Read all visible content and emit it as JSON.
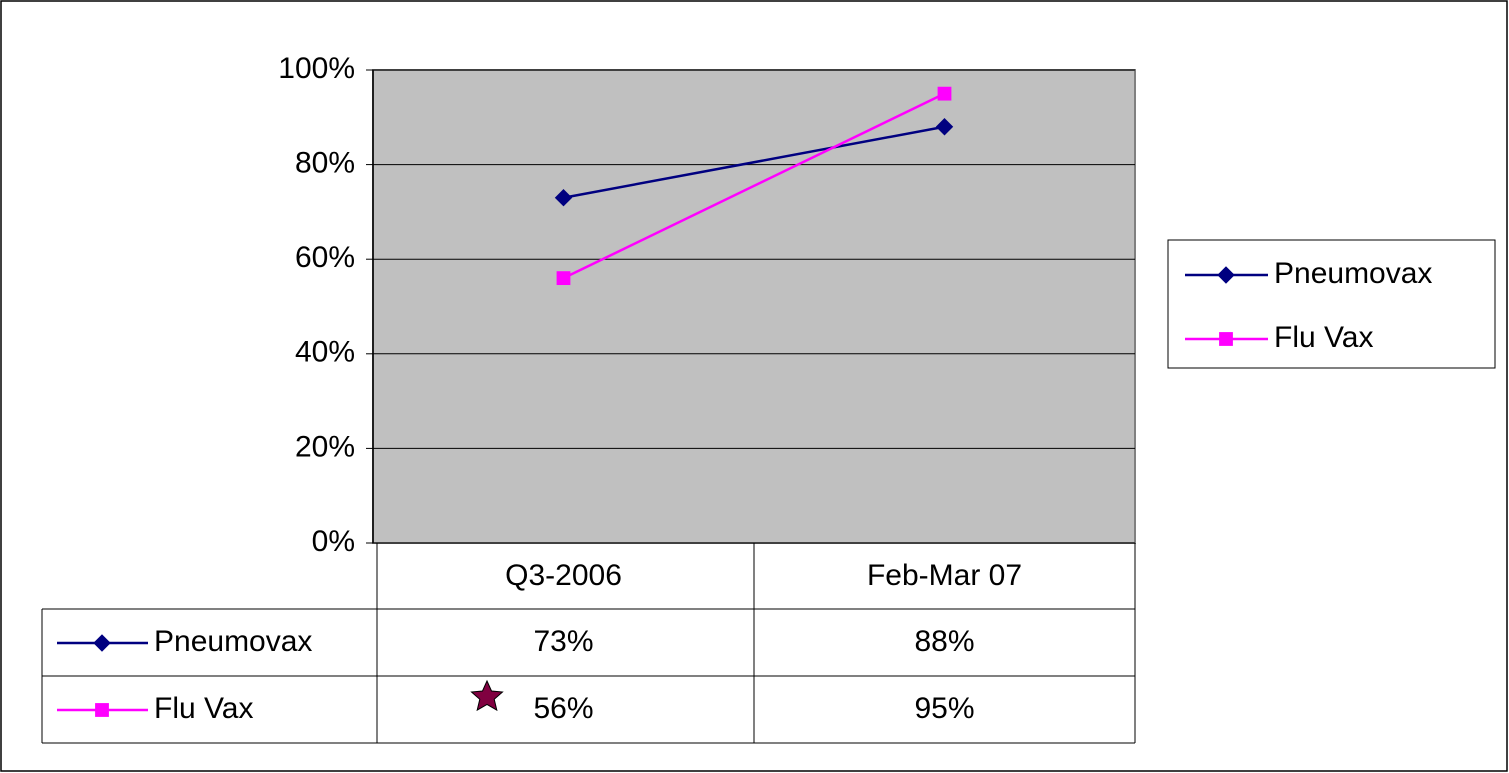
{
  "chart_data": {
    "type": "line",
    "categories": [
      "Q3-2006",
      "Feb-Mar 07"
    ],
    "series": [
      {
        "name": "Pneumovax",
        "color": "#000080",
        "marker": "diamond",
        "values": [
          73,
          88
        ],
        "value_labels": [
          "73%",
          "88%"
        ]
      },
      {
        "name": "Flu Vax",
        "color": "#ff00ff",
        "marker": "square",
        "values": [
          56,
          95
        ],
        "value_labels": [
          "56%",
          "95%"
        ]
      }
    ],
    "ylim": [
      0,
      100
    ],
    "yticks": [
      {
        "value": 0,
        "label": "0%"
      },
      {
        "value": 20,
        "label": "20%"
      },
      {
        "value": 40,
        "label": "40%"
      },
      {
        "value": 60,
        "label": "60%"
      },
      {
        "value": 80,
        "label": "80%"
      },
      {
        "value": 100,
        "label": "100%"
      }
    ],
    "grid": true,
    "legend": "right",
    "data_table": true,
    "plot_background": "#c0c0c0"
  }
}
